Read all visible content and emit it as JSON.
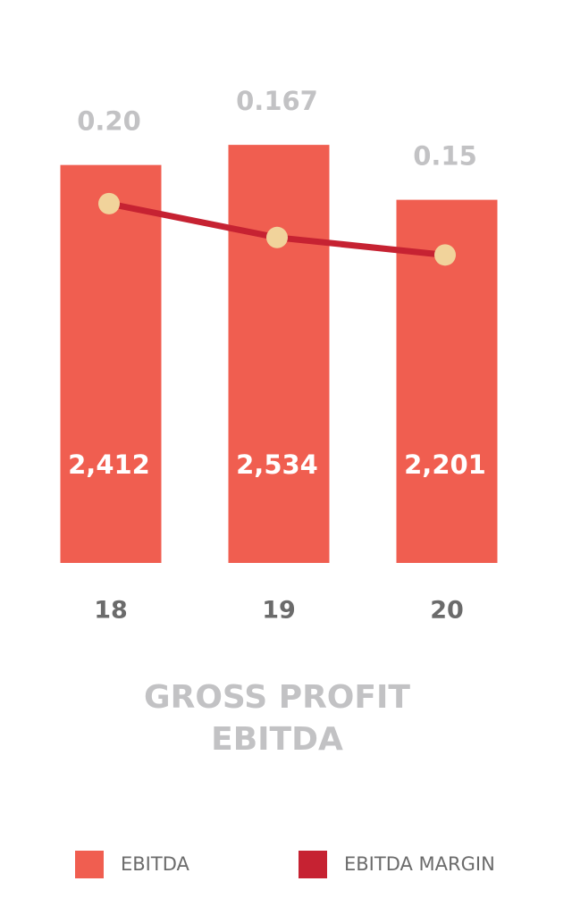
{
  "chart_data": {
    "type": "bar",
    "title": [
      "GROSS PROFIT",
      "EBITDA"
    ],
    "categories": [
      "18",
      "19",
      "20"
    ],
    "ylim": [
      0,
      2800
    ],
    "y2lim": [
      -0.15,
      0.3
    ],
    "series": [
      {
        "name": "EBITDA",
        "type": "bar",
        "color": "#f05e50",
        "values": [
          2412,
          2534,
          2201
        ],
        "value_labels": [
          "2,412",
          "2,534",
          "2,201"
        ]
      },
      {
        "name": "EBITDA MARGIN",
        "type": "line",
        "axis": "y2",
        "color": "#c62232",
        "marker_color": "#f1d39b",
        "values": [
          0.2,
          0.167,
          0.15
        ],
        "value_labels": [
          "0.20",
          "0.167",
          "0.15"
        ]
      }
    ],
    "legend": "bottom"
  }
}
